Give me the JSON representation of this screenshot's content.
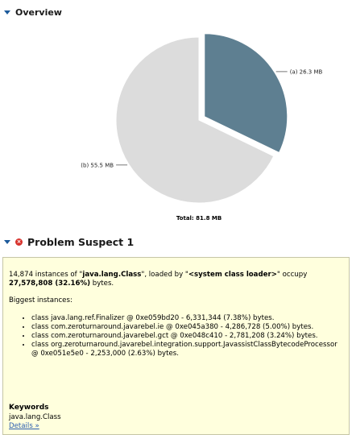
{
  "overview": {
    "title": "Overview"
  },
  "chart_data": {
    "type": "pie",
    "title": "",
    "slices": [
      {
        "label": "(a)",
        "value_label": "26.3 MB",
        "value": 26.3,
        "exploded": true,
        "color": "#5e7f91"
      },
      {
        "label": "(b)",
        "value_label": "55.5 MB",
        "value": 55.5,
        "exploded": false,
        "color": "#dcdcdc"
      }
    ],
    "total_label": "Total: 81.8 MB"
  },
  "suspect": {
    "title": "Problem Suspect 1",
    "summary": [
      {
        "text": "14,874 instances of \"",
        "bold": false
      },
      {
        "text": "java.lang.Class",
        "bold": true
      },
      {
        "text": "\", loaded by \"",
        "bold": false
      },
      {
        "text": "<system class loader>",
        "bold": true
      },
      {
        "text": "\" occupy ",
        "bold": false
      },
      {
        "text": "27,578,808 (32.16%)",
        "bold": true
      },
      {
        "text": " bytes.",
        "bold": false
      }
    ],
    "biggest_label": "Biggest instances:",
    "instances": [
      "class java.lang.ref.Finalizer @ 0xe059bd20 - 6,331,344 (7.38%) bytes.",
      "class com.zeroturnaround.javarebel.ie @ 0xe045a380 - 4,286,728 (5.00%) bytes.",
      "class com.zeroturnaround.javarebel.gct @ 0xe048c410 - 2,781,208 (3.24%) bytes.",
      "class org.zeroturnaround.javarebel.integration.support.JavassistClassBytecodeProcessor @ 0xe051e5e0 - 2,253,000 (2.63%) bytes."
    ],
    "keywords_title": "Keywords",
    "keywords": "java.lang.Class",
    "details_link": "Details »"
  },
  "icons": {
    "collapse": "triangle-down-icon",
    "error": "error-icon",
    "error_color": "#d7322c"
  }
}
